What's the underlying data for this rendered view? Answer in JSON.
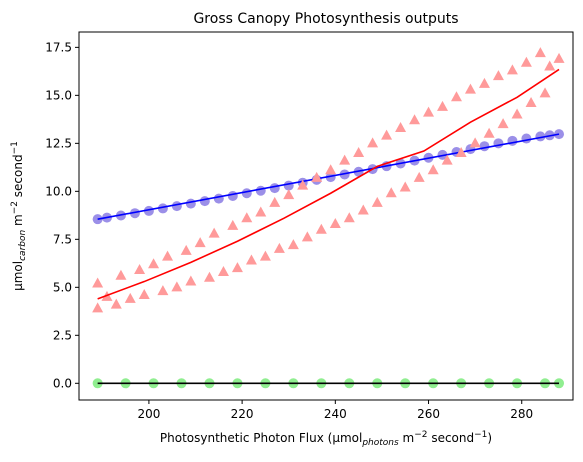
{
  "chart_data": {
    "type": "scatter",
    "title": "Gross Canopy Photosynthesis outputs",
    "xlabel": {
      "prefix": "Photosynthetic Photon Flux (µmol",
      "sub": "photons",
      "mid": " m",
      "sup1": "−2",
      "mid2": " second",
      "sup2": "−1",
      "suffix": ")"
    },
    "ylabel": {
      "prefix": "µmol",
      "sub": "carbon",
      "mid": " m",
      "sup1": "−2",
      "mid2": " second",
      "sup2": "−1"
    },
    "xlim": [
      185,
      291
    ],
    "ylim": [
      -0.87,
      18.3
    ],
    "xticks": [
      200,
      220,
      240,
      260,
      280
    ],
    "yticks": [
      0.0,
      2.5,
      5.0,
      7.5,
      10.0,
      12.5,
      15.0,
      17.5
    ],
    "grid": false,
    "series": [
      {
        "marker": "circle",
        "color": "#9b8fe8",
        "line_color": "#0000ff",
        "points": [
          [
            189,
            8.55
          ],
          [
            191,
            8.63
          ],
          [
            194,
            8.74
          ],
          [
            197,
            8.86
          ],
          [
            200,
            8.98
          ],
          [
            203,
            9.11
          ],
          [
            206,
            9.23
          ],
          [
            209,
            9.36
          ],
          [
            212,
            9.49
          ],
          [
            215,
            9.62
          ],
          [
            218,
            9.76
          ],
          [
            221,
            9.9
          ],
          [
            224,
            10.03
          ],
          [
            227,
            10.17
          ],
          [
            230,
            10.3
          ],
          [
            233,
            10.45
          ],
          [
            236,
            10.6
          ],
          [
            239,
            10.74
          ],
          [
            242,
            10.88
          ],
          [
            245,
            11.02
          ],
          [
            248,
            11.16
          ],
          [
            251,
            11.31
          ],
          [
            254,
            11.45
          ],
          [
            257,
            11.6
          ],
          [
            260,
            11.75
          ],
          [
            263,
            11.9
          ],
          [
            266,
            12.05
          ],
          [
            269,
            12.2
          ],
          [
            272,
            12.35
          ],
          [
            275,
            12.5
          ],
          [
            278,
            12.63
          ],
          [
            281,
            12.75
          ],
          [
            284,
            12.86
          ],
          [
            286,
            12.92
          ],
          [
            288,
            12.98
          ]
        ],
        "fit": [
          [
            189,
            8.55
          ],
          [
            288,
            12.98
          ]
        ]
      },
      {
        "marker": "triangle",
        "color": "#ff9a9a",
        "line_color": "#ff0000",
        "points": [
          [
            189,
            3.9
          ],
          [
            189,
            5.2
          ],
          [
            191,
            4.5
          ],
          [
            193,
            4.1
          ],
          [
            194,
            5.6
          ],
          [
            196,
            4.4
          ],
          [
            198,
            5.9
          ],
          [
            199,
            4.6
          ],
          [
            201,
            6.2
          ],
          [
            203,
            4.8
          ],
          [
            204,
            6.6
          ],
          [
            206,
            5.0
          ],
          [
            208,
            6.9
          ],
          [
            209,
            5.3
          ],
          [
            211,
            7.3
          ],
          [
            213,
            5.5
          ],
          [
            214,
            7.8
          ],
          [
            216,
            5.8
          ],
          [
            218,
            8.2
          ],
          [
            219,
            6.0
          ],
          [
            221,
            8.6
          ],
          [
            222,
            6.4
          ],
          [
            224,
            8.9
          ],
          [
            225,
            6.6
          ],
          [
            227,
            9.4
          ],
          [
            228,
            7.0
          ],
          [
            230,
            9.8
          ],
          [
            231,
            7.2
          ],
          [
            233,
            10.3
          ],
          [
            234,
            7.6
          ],
          [
            236,
            10.7
          ],
          [
            237,
            8.0
          ],
          [
            239,
            11.1
          ],
          [
            240,
            8.3
          ],
          [
            242,
            11.6
          ],
          [
            243,
            8.6
          ],
          [
            245,
            12.0
          ],
          [
            246,
            9.0
          ],
          [
            248,
            12.5
          ],
          [
            249,
            9.4
          ],
          [
            251,
            12.9
          ],
          [
            252,
            9.9
          ],
          [
            254,
            13.3
          ],
          [
            255,
            10.2
          ],
          [
            257,
            13.7
          ],
          [
            258,
            10.7
          ],
          [
            260,
            14.1
          ],
          [
            261,
            11.1
          ],
          [
            263,
            14.4
          ],
          [
            264,
            11.6
          ],
          [
            266,
            14.9
          ],
          [
            267,
            12.0
          ],
          [
            269,
            15.3
          ],
          [
            270,
            12.5
          ],
          [
            272,
            15.6
          ],
          [
            273,
            13.0
          ],
          [
            275,
            16.0
          ],
          [
            276,
            13.5
          ],
          [
            278,
            16.3
          ],
          [
            279,
            14.0
          ],
          [
            281,
            16.7
          ],
          [
            282,
            14.6
          ],
          [
            284,
            17.2
          ],
          [
            285,
            15.1
          ],
          [
            286,
            16.5
          ],
          [
            288,
            16.9
          ]
        ],
        "fit": [
          [
            189,
            4.4
          ],
          [
            199,
            5.3
          ],
          [
            209,
            6.3
          ],
          [
            219,
            7.4
          ],
          [
            229,
            8.6
          ],
          [
            239,
            9.9
          ],
          [
            249,
            11.3
          ],
          [
            259,
            12.1
          ],
          [
            269,
            13.6
          ],
          [
            279,
            14.9
          ],
          [
            288,
            16.35
          ]
        ]
      },
      {
        "marker": "circle",
        "color": "#90ee90",
        "line_color": "#000000",
        "points": [
          [
            189,
            0.0
          ],
          [
            195,
            0.0
          ],
          [
            201,
            0.0
          ],
          [
            207,
            0.0
          ],
          [
            213,
            0.0
          ],
          [
            219,
            0.0
          ],
          [
            225,
            0.0
          ],
          [
            231,
            0.0
          ],
          [
            237,
            0.0
          ],
          [
            243,
            0.0
          ],
          [
            249,
            0.0
          ],
          [
            255,
            0.0
          ],
          [
            261,
            0.0
          ],
          [
            267,
            0.0
          ],
          [
            273,
            0.0
          ],
          [
            279,
            0.0
          ],
          [
            285,
            0.0
          ],
          [
            288,
            0.0
          ]
        ],
        "fit": [
          [
            189,
            0.0
          ],
          [
            288,
            0.0
          ]
        ]
      }
    ]
  }
}
